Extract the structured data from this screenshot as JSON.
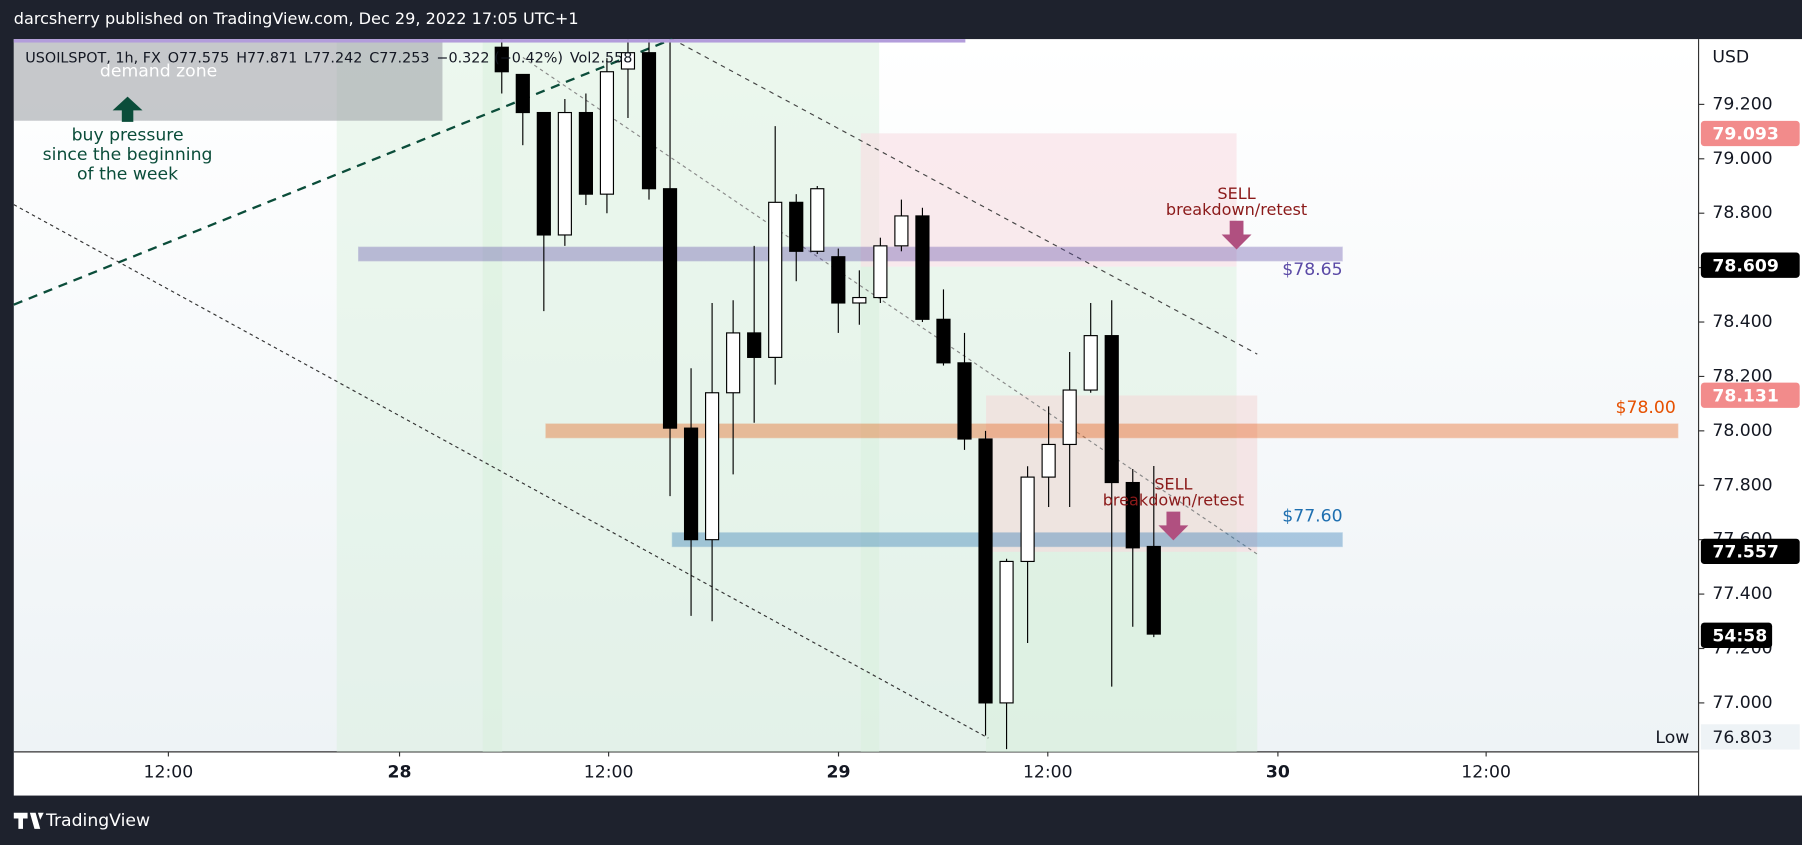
{
  "header": {
    "title": "darcsherry published on TradingView.com, Dec 29, 2022 17:05 UTC+1"
  },
  "footer": {
    "brand": "TradingView"
  },
  "chart_data": {
    "type": "candlestick",
    "legend_items": [
      "USOILSPOT, 1h, FX",
      "O77.575",
      "H77.871",
      "L77.242",
      "C77.253",
      "−0.322 (−0.42%)",
      "Vol2.558"
    ],
    "currency": "USD",
    "categories": [
      null,
      null,
      null,
      null,
      null,
      null,
      null,
      null,
      null,
      null,
      null,
      null,
      null,
      null,
      null,
      null,
      null,
      null,
      null,
      null,
      null,
      null,
      null,
      null,
      null,
      null,
      null,
      null,
      null,
      null,
      null,
      null
    ],
    "open": [
      79.41,
      79.31,
      79.17,
      78.72,
      79.17,
      78.87,
      79.33,
      79.39,
      78.89,
      78.01,
      77.6,
      78.14,
      78.36,
      78.27,
      78.84,
      78.66,
      78.64,
      78.47,
      78.49,
      78.68,
      78.79,
      78.41,
      78.25,
      77.97,
      77.0,
      77.52,
      77.83,
      77.95,
      78.15,
      78.35,
      77.81,
      77.575
    ],
    "high": [
      79.44,
      79.31,
      79.17,
      79.22,
      79.24,
      79.37,
      79.44,
      79.44,
      79.44,
      78.23,
      78.47,
      78.48,
      78.68,
      79.12,
      78.87,
      78.9,
      78.67,
      78.59,
      78.71,
      78.85,
      78.82,
      78.52,
      78.36,
      78.0,
      77.53,
      77.87,
      78.09,
      78.29,
      78.47,
      78.48,
      77.86,
      77.871
    ],
    "low": [
      79.24,
      79.05,
      78.44,
      78.68,
      78.83,
      78.8,
      79.15,
      78.85,
      77.76,
      77.32,
      77.3,
      77.84,
      78.03,
      78.17,
      78.55,
      78.65,
      78.36,
      78.39,
      78.47,
      78.66,
      78.4,
      78.24,
      77.93,
      76.88,
      76.83,
      77.22,
      77.72,
      77.72,
      78.14,
      77.06,
      77.28,
      77.242
    ],
    "close": [
      79.32,
      79.17,
      78.72,
      79.17,
      78.87,
      79.32,
      79.39,
      78.89,
      78.01,
      77.6,
      78.14,
      78.36,
      78.27,
      78.84,
      78.66,
      78.89,
      78.47,
      78.49,
      78.68,
      78.79,
      78.41,
      78.25,
      77.97,
      77.0,
      77.52,
      77.83,
      77.95,
      78.15,
      78.35,
      77.81,
      77.57,
      77.253
    ],
    "up_color": "#ffffff",
    "down_color": "#000000",
    "xlim": [
      -23.2,
      56.9
    ],
    "xticks": [
      {
        "value": -15.85,
        "label": "12:00"
      },
      {
        "value": -4.86,
        "label": "28"
      },
      {
        "value": 5.08,
        "label": "12:00"
      },
      {
        "value": 16.01,
        "label": "29"
      },
      {
        "value": 25.96,
        "label": "12:00"
      },
      {
        "value": 36.9,
        "label": "30"
      },
      {
        "value": 46.8,
        "label": "12:00"
      }
    ],
    "ylim": [
      76.82,
      79.44
    ],
    "yticks": [
      {
        "value": 77.0,
        "label": "77.000"
      },
      {
        "value": 77.2,
        "label": "77.200"
      },
      {
        "value": 77.4,
        "label": "77.400"
      },
      {
        "value": 77.6,
        "label": "77.600"
      },
      {
        "value": 77.8,
        "label": "77.800"
      },
      {
        "value": 78.0,
        "label": "78.000"
      },
      {
        "value": 78.2,
        "label": "78.200"
      },
      {
        "value": 78.4,
        "label": "78.400"
      },
      {
        "value": 78.6,
        "label": "78.600"
      },
      {
        "value": 78.8,
        "label": "78.800"
      },
      {
        "value": 79.0,
        "label": "79.000"
      },
      {
        "value": 79.2,
        "label": "79.200"
      }
    ],
    "levels": [
      {
        "value": 78.65,
        "label": "$78.65",
        "color": "#5b4aa6"
      },
      {
        "value": 78.0,
        "label": "$78.00",
        "color": "#e65100"
      },
      {
        "value": 77.6,
        "label": "$77.60",
        "color": "#1e6fb0"
      }
    ],
    "price_tags": [
      {
        "value": 79.093,
        "label": "79.093",
        "color": "#f28b8b"
      },
      {
        "value": 78.609,
        "label": "78.609",
        "color": "#000000"
      },
      {
        "value": 78.131,
        "label": "78.131",
        "color": "#f28b8b"
      },
      {
        "value": 77.557,
        "label": "77.557",
        "color": "#000000"
      }
    ],
    "countdown": "54:58",
    "low_label": "Low",
    "low_value": {
      "value": 76.803,
      "label": "76.803"
    },
    "annotations": {
      "demand_zone": "demand zone",
      "buy_pressure": [
        "buy pressure",
        "since the beginning",
        "of the week"
      ],
      "sell_1": "SELL",
      "retest_1": "breakdown/retest",
      "sell_2": "SELL",
      "retest_2": "breakdown/retest"
    }
  }
}
